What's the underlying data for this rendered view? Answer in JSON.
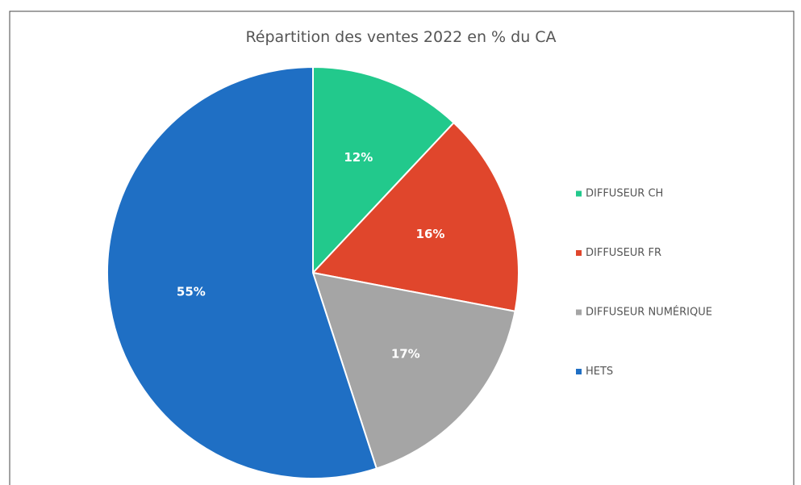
{
  "chart_data": {
    "type": "pie",
    "title": "Répartition des ventes 2022 en % du CA",
    "categories": [
      "DIFFUSEUR CH",
      "DIFFUSEUR FR",
      "DIFFUSEUR NUMÉRIQUE",
      "HETS"
    ],
    "values": [
      12,
      16,
      17,
      55
    ],
    "value_labels": [
      "12%",
      "16%",
      "17%",
      "55%"
    ],
    "colors": [
      "#22c98c",
      "#e0462c",
      "#a5a5a5",
      "#1f6fc4"
    ],
    "legend": "right"
  }
}
